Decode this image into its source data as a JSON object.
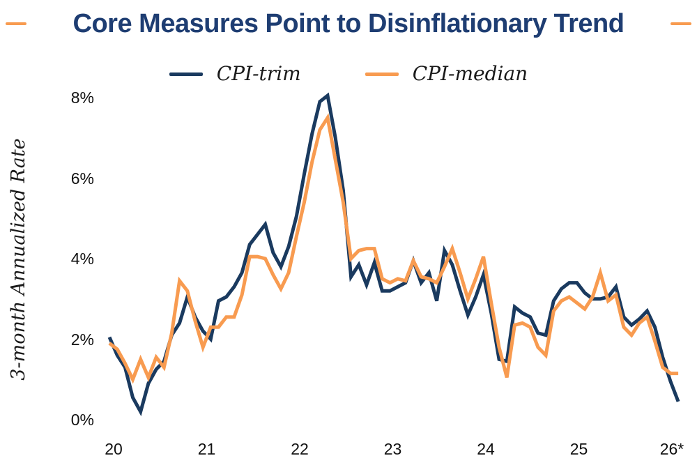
{
  "title": {
    "text": "Core Measures Point to Disinflationary Trend"
  },
  "title_accent_color": "#f89b50",
  "legend": [
    {
      "label": "CPI-trim",
      "color": "#1a3a5f"
    },
    {
      "label": "CPI-median",
      "color": "#f89b50"
    }
  ],
  "y_axis": {
    "title": "3-month Annualized Rate",
    "ticks": [
      {
        "label": "8%",
        "value": 8
      },
      {
        "label": "6%",
        "value": 6
      },
      {
        "label": "4%",
        "value": 4
      },
      {
        "label": "2%",
        "value": 2
      },
      {
        "label": "0%",
        "value": 0
      }
    ]
  },
  "x_axis": {
    "ticks": [
      "20",
      "21",
      "22",
      "23",
      "24",
      "25",
      "26*"
    ]
  },
  "chart_data": {
    "type": "line",
    "title": "Core Measures Point to Disinflationary Trend",
    "ylabel": "3-month Annualized Rate",
    "ylim": [
      0,
      8
    ],
    "x_unit": "month",
    "x_start": "2020-01",
    "x_end": "2026-02",
    "x_tick_labels": [
      "20",
      "21",
      "22",
      "23",
      "24",
      "25",
      "26*"
    ],
    "grid": false,
    "legend_position": "top",
    "series": [
      {
        "name": "CPI-trim",
        "color": "#1a3a5f",
        "values": [
          2.05,
          1.6,
          1.3,
          0.55,
          0.2,
          0.9,
          1.25,
          1.45,
          2.1,
          2.4,
          3.05,
          2.55,
          2.2,
          2.0,
          2.95,
          3.05,
          3.3,
          3.65,
          4.35,
          4.6,
          4.85,
          4.15,
          3.8,
          4.3,
          5.05,
          6.1,
          7.1,
          7.9,
          8.05,
          7.0,
          5.7,
          3.55,
          3.85,
          3.35,
          3.9,
          3.2,
          3.2,
          3.3,
          3.4,
          3.95,
          3.4,
          3.65,
          2.95,
          4.2,
          3.85,
          3.2,
          2.6,
          3.05,
          3.6,
          2.65,
          1.5,
          1.45,
          2.8,
          2.65,
          2.55,
          2.15,
          2.1,
          2.95,
          3.25,
          3.4,
          3.4,
          3.15,
          3.0,
          3.0,
          3.05,
          3.3,
          2.55,
          2.35,
          2.5,
          2.7,
          2.3,
          1.55,
          0.95,
          0.45
        ]
      },
      {
        "name": "CPI-median",
        "color": "#f89b50",
        "values": [
          1.9,
          1.75,
          1.4,
          1.0,
          1.5,
          1.05,
          1.55,
          1.3,
          2.15,
          3.45,
          3.2,
          2.45,
          1.8,
          2.3,
          2.3,
          2.55,
          2.55,
          3.1,
          4.05,
          4.05,
          4.0,
          3.6,
          3.25,
          3.65,
          4.55,
          5.4,
          6.4,
          7.2,
          7.5,
          6.45,
          5.4,
          4.0,
          4.2,
          4.25,
          4.25,
          3.5,
          3.4,
          3.5,
          3.45,
          3.95,
          3.55,
          3.5,
          3.4,
          3.8,
          4.25,
          3.65,
          3.0,
          3.5,
          4.05,
          2.9,
          1.8,
          1.05,
          2.35,
          2.4,
          2.3,
          1.8,
          1.6,
          2.7,
          2.95,
          3.05,
          2.9,
          2.75,
          3.05,
          3.65,
          2.95,
          3.1,
          2.3,
          2.1,
          2.4,
          2.55,
          1.95,
          1.3,
          1.15,
          1.15
        ]
      }
    ]
  }
}
